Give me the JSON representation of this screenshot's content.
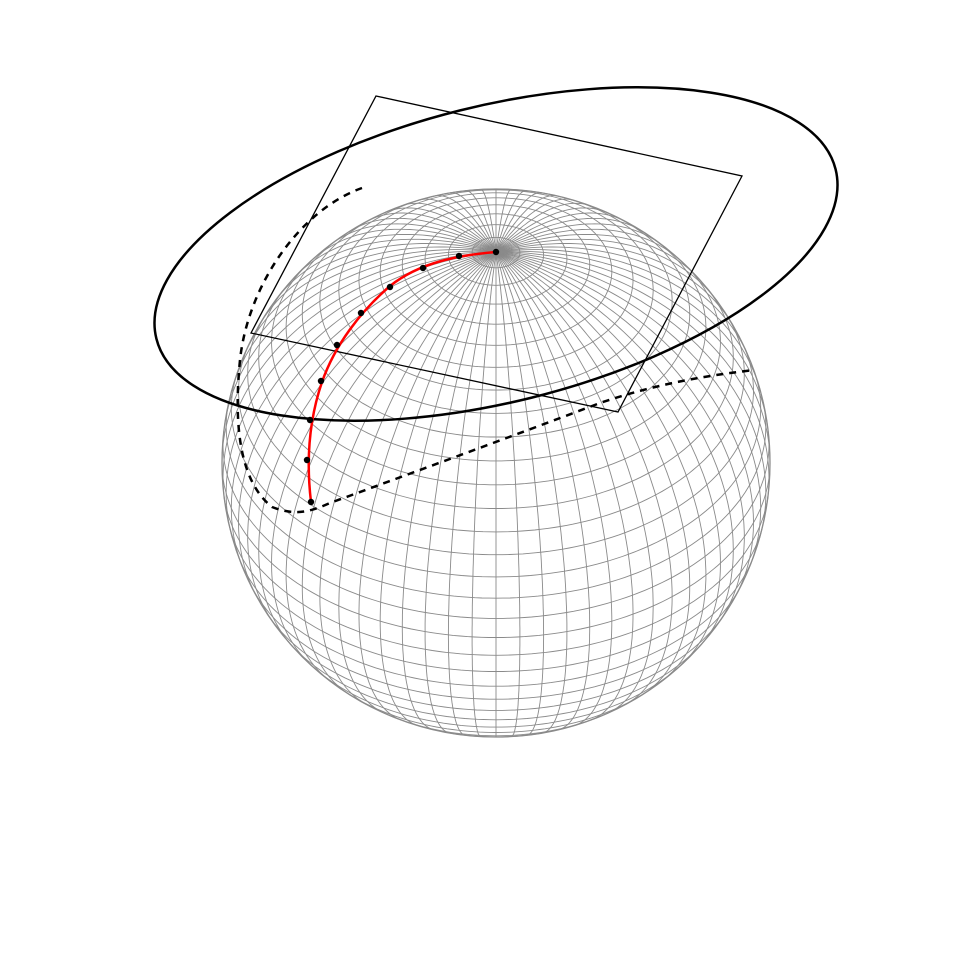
{
  "figure": {
    "colors": {
      "background": "#ffffff",
      "grid": "#8a8a8a",
      "outline": "#000000",
      "path": "#ff0000",
      "markers": "#000000"
    },
    "path_marker_count": 8
  }
}
